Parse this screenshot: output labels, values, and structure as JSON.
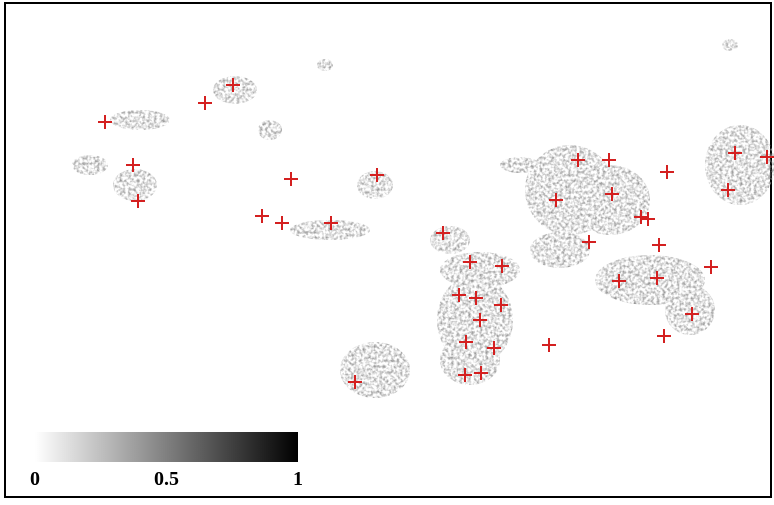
{
  "colorbar": {
    "range": [
      0,
      1
    ],
    "ticks": [
      0,
      0.5,
      1
    ]
  }
}
